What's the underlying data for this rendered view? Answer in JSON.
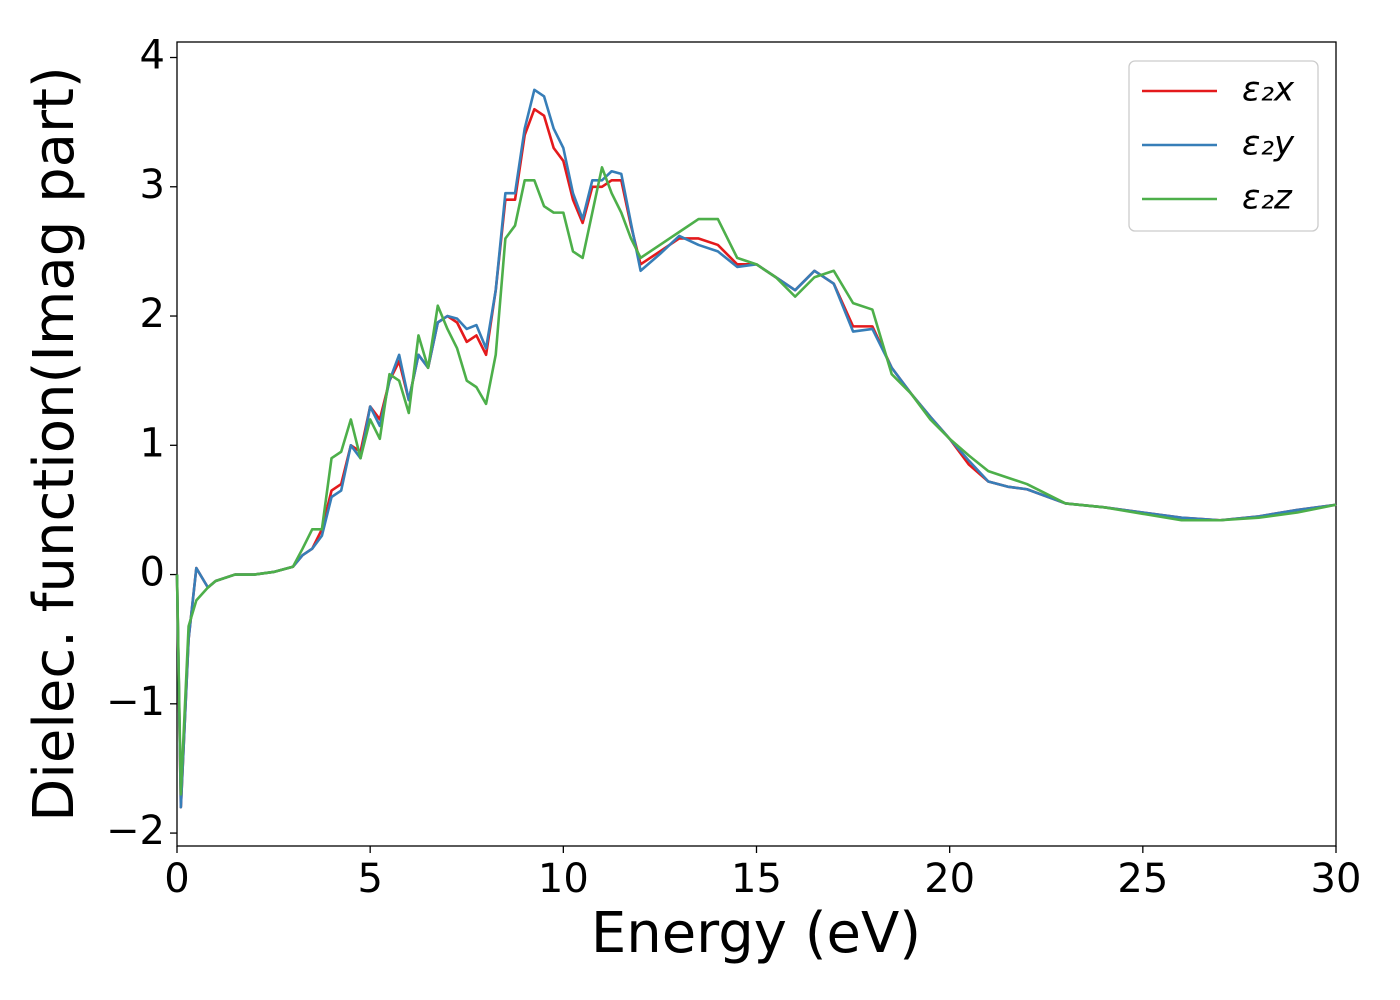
{
  "chart_data": {
    "type": "line",
    "xlabel": "Energy (eV)",
    "ylabel": "Dielec. function(Imag part)",
    "xlim": [
      0,
      30
    ],
    "ylim": [
      -2.1,
      4.12
    ],
    "xticks": [
      0,
      5,
      10,
      15,
      20,
      25,
      30
    ],
    "yticks": [
      {
        "value": -2,
        "label": "−2"
      },
      {
        "value": -1,
        "label": "−1"
      },
      0,
      1,
      2,
      3,
      4
    ],
    "legend": "upper right",
    "grid": false,
    "x": [
      0,
      0.1,
      0.3,
      0.5,
      0.8,
      1,
      1.5,
      2,
      2.5,
      3,
      3.25,
      3.5,
      3.75,
      4,
      4.25,
      4.5,
      4.75,
      5,
      5.25,
      5.5,
      5.75,
      6,
      6.25,
      6.5,
      6.75,
      7,
      7.25,
      7.5,
      7.75,
      8,
      8.25,
      8.5,
      8.75,
      9,
      9.25,
      9.5,
      9.75,
      10,
      10.25,
      10.5,
      10.75,
      11,
      11.25,
      11.5,
      11.75,
      12,
      12.5,
      13,
      13.5,
      14,
      14.5,
      15,
      15.5,
      16,
      16.5,
      17,
      17.5,
      18,
      18.5,
      19,
      19.5,
      20,
      20.5,
      21,
      21.5,
      22,
      23,
      24,
      25,
      26,
      27,
      28,
      29,
      30
    ],
    "series": [
      {
        "name": "ε₂x",
        "color": "#e41a1c",
        "values": [
          0,
          -1.8,
          -0.5,
          0.05,
          -0.1,
          -0.05,
          0,
          0,
          0.02,
          0.06,
          0.15,
          0.2,
          0.35,
          0.65,
          0.7,
          1.0,
          0.95,
          1.3,
          1.2,
          1.5,
          1.65,
          1.35,
          1.7,
          1.6,
          1.95,
          2.0,
          1.95,
          1.8,
          1.85,
          1.7,
          2.2,
          2.9,
          2.9,
          3.4,
          3.6,
          3.55,
          3.3,
          3.2,
          2.9,
          2.72,
          3.0,
          3.0,
          3.05,
          3.05,
          2.7,
          2.4,
          2.5,
          2.6,
          2.6,
          2.55,
          2.4,
          2.4,
          2.3,
          2.2,
          2.35,
          2.25,
          1.92,
          1.92,
          1.6,
          1.4,
          1.22,
          1.05,
          0.85,
          0.72,
          0.68,
          0.66,
          0.55,
          0.52,
          0.48,
          0.44,
          0.42,
          0.45,
          0.5,
          0.54
        ]
      },
      {
        "name": "ε₂y",
        "color": "#377eb8",
        "values": [
          0,
          -1.8,
          -0.5,
          0.05,
          -0.1,
          -0.05,
          0,
          0,
          0.02,
          0.06,
          0.15,
          0.2,
          0.3,
          0.6,
          0.65,
          1.0,
          0.9,
          1.3,
          1.15,
          1.5,
          1.7,
          1.35,
          1.7,
          1.6,
          1.95,
          2.0,
          1.98,
          1.9,
          1.93,
          1.75,
          2.2,
          2.95,
          2.95,
          3.45,
          3.75,
          3.7,
          3.45,
          3.3,
          2.95,
          2.75,
          3.05,
          3.05,
          3.12,
          3.1,
          2.72,
          2.35,
          2.48,
          2.62,
          2.55,
          2.5,
          2.38,
          2.4,
          2.3,
          2.2,
          2.35,
          2.25,
          1.88,
          1.9,
          1.6,
          1.4,
          1.22,
          1.05,
          0.88,
          0.72,
          0.68,
          0.66,
          0.55,
          0.52,
          0.48,
          0.44,
          0.42,
          0.45,
          0.5,
          0.54
        ]
      },
      {
        "name": "ε₂z",
        "color": "#4daf4a",
        "values": [
          0,
          -1.7,
          -0.4,
          -0.2,
          -0.1,
          -0.05,
          0,
          0,
          0.02,
          0.06,
          0.2,
          0.35,
          0.35,
          0.9,
          0.95,
          1.2,
          0.9,
          1.2,
          1.05,
          1.55,
          1.5,
          1.25,
          1.85,
          1.6,
          2.08,
          1.9,
          1.75,
          1.5,
          1.45,
          1.32,
          1.7,
          2.6,
          2.7,
          3.05,
          3.05,
          2.85,
          2.8,
          2.8,
          2.5,
          2.45,
          2.8,
          3.15,
          2.95,
          2.8,
          2.6,
          2.45,
          2.55,
          2.65,
          2.75,
          2.75,
          2.45,
          2.4,
          2.3,
          2.15,
          2.3,
          2.35,
          2.1,
          2.05,
          1.55,
          1.4,
          1.2,
          1.05,
          0.92,
          0.8,
          0.75,
          0.7,
          0.55,
          0.52,
          0.47,
          0.42,
          0.42,
          0.44,
          0.48,
          0.54
        ]
      }
    ]
  }
}
